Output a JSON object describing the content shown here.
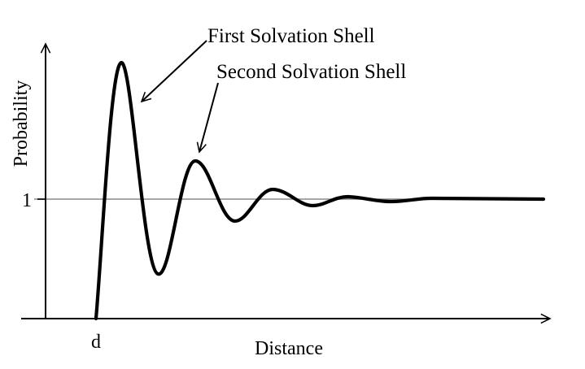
{
  "figure": {
    "y_axis_label": "Probability",
    "x_axis_label": "Distance",
    "y_tick_label": "1",
    "x_tick_label": "d",
    "annotations": {
      "first": "First Solvation Shell",
      "second": "Second Solvation Shell"
    },
    "colors": {
      "curve": "#000000",
      "axes": "#000000",
      "reference_line": "#8a8a8a",
      "background": "#ffffff"
    }
  }
}
